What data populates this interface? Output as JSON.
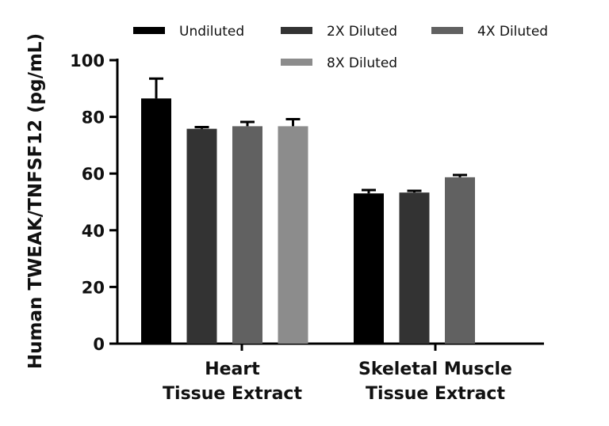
{
  "chart_data": {
    "type": "bar",
    "title": "",
    "xlabel": "",
    "ylabel": "Human TWEAK/TNFSF12 (pg/mL)",
    "ylim": [
      0,
      100
    ],
    "yticks": [
      "0",
      "20",
      "40",
      "60",
      "80",
      "100"
    ],
    "grid": false,
    "legend_position": "top",
    "categories": [
      {
        "line1": "Heart",
        "line2": "Tissue Extract"
      },
      {
        "line1": "Skeletal Muscle",
        "line2": "Tissue Extract"
      }
    ],
    "series": [
      {
        "name": "Undiluted",
        "color": "#000000",
        "values": [
          86.5,
          53.0
        ],
        "errors": [
          7.0,
          1.2
        ]
      },
      {
        "name": "2X Diluted",
        "color": "#333333",
        "values": [
          75.8,
          53.3
        ],
        "errors": [
          0.6,
          0.6
        ]
      },
      {
        "name": "4X Diluted",
        "color": "#616161",
        "values": [
          76.7,
          58.7
        ],
        "errors": [
          1.5,
          0.8
        ]
      },
      {
        "name": "8X Diluted",
        "color": "#8c8c8c",
        "values": [
          76.7,
          null
        ],
        "errors": [
          2.5,
          null
        ]
      }
    ]
  }
}
